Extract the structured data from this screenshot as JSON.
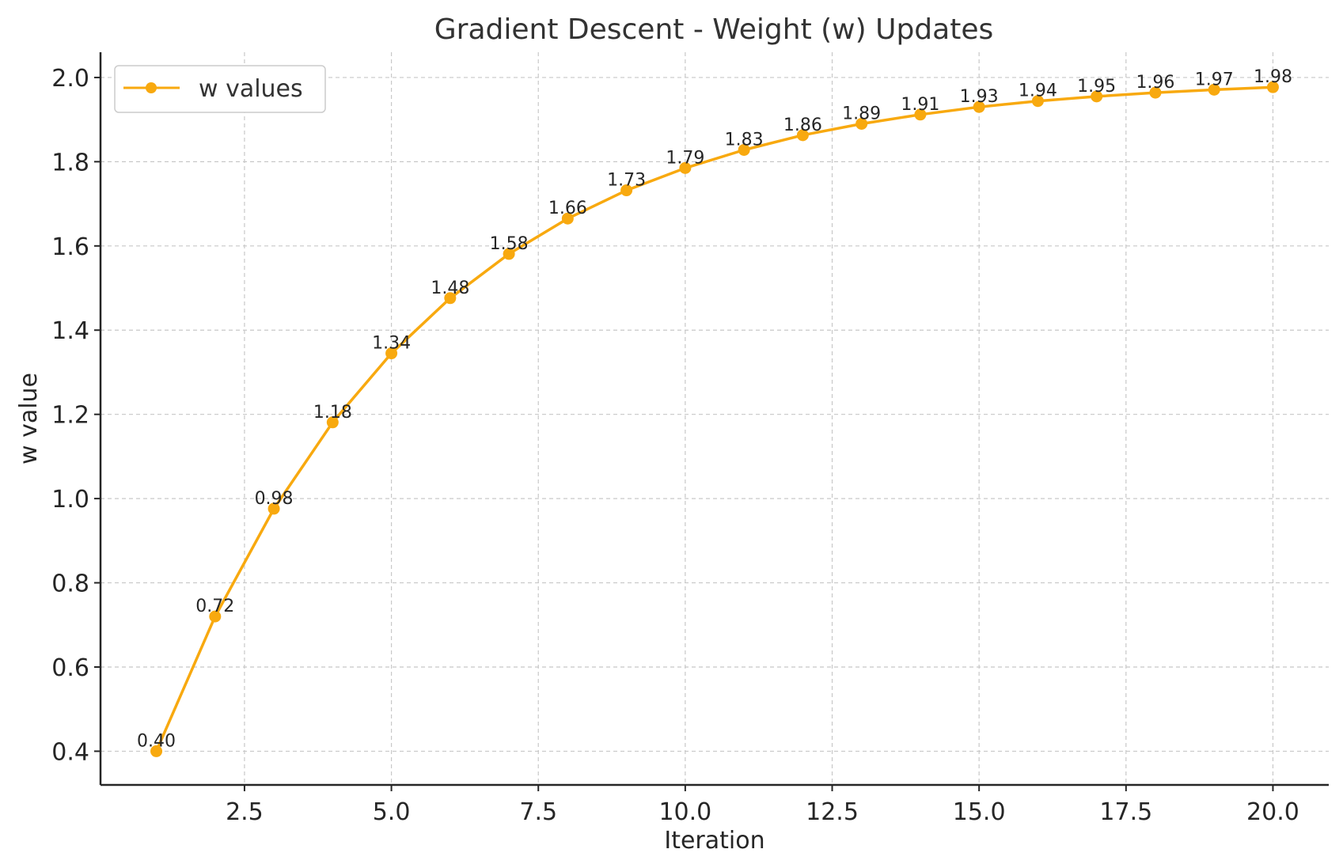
{
  "chart_data": {
    "type": "line",
    "title": "Gradient Descent - Weight (w) Updates",
    "xlabel": "Iteration",
    "ylabel": "w value",
    "xlim": [
      0.05,
      20.95
    ],
    "ylim": [
      0.32,
      2.06
    ],
    "xticks": [
      2.5,
      5.0,
      7.5,
      10.0,
      12.5,
      15.0,
      17.5,
      20.0
    ],
    "xtick_labels": [
      "2.5",
      "5.0",
      "7.5",
      "10.0",
      "12.5",
      "15.0",
      "17.5",
      "20.0"
    ],
    "yticks": [
      0.4,
      0.6,
      0.8,
      1.0,
      1.2,
      1.4,
      1.6,
      1.8,
      2.0
    ],
    "ytick_labels": [
      "0.4",
      "0.6",
      "0.8",
      "1.0",
      "1.2",
      "1.4",
      "1.6",
      "1.8",
      "2.0"
    ],
    "grid": true,
    "legend_position": "top-left",
    "series": [
      {
        "name": "w values",
        "color": "#F8A90F",
        "marker": "circle",
        "x": [
          1,
          2,
          3,
          4,
          5,
          6,
          7,
          8,
          9,
          10,
          11,
          12,
          13,
          14,
          15,
          16,
          17,
          18,
          19,
          20
        ],
        "y": [
          0.4,
          0.72,
          0.976,
          1.181,
          1.345,
          1.476,
          1.581,
          1.665,
          1.732,
          1.785,
          1.828,
          1.863,
          1.89,
          1.912,
          1.93,
          1.944,
          1.955,
          1.964,
          1.971,
          1.977
        ],
        "labels": [
          "0.40",
          "0.72",
          "0.98",
          "1.18",
          "1.34",
          "1.48",
          "1.58",
          "1.66",
          "1.73",
          "1.79",
          "1.83",
          "1.86",
          "1.89",
          "1.91",
          "1.93",
          "1.94",
          "1.95",
          "1.96",
          "1.97",
          "1.98"
        ]
      }
    ]
  }
}
